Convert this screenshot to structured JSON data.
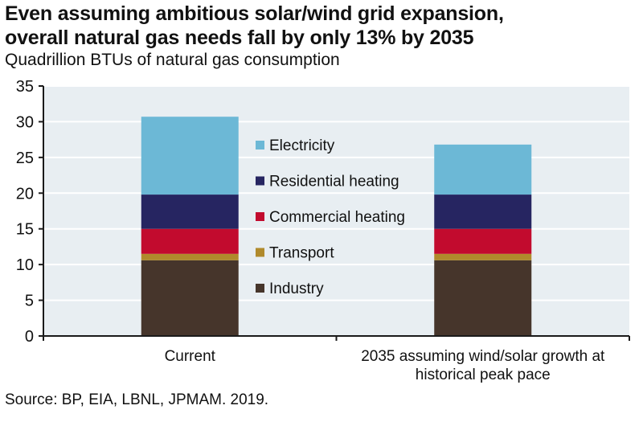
{
  "title_line1": "Even assuming ambitious solar/wind grid expansion,",
  "title_line2": "overall natural gas needs fall by only 13% by 2035",
  "subtitle": "Quadrillion BTUs of natural gas consumption",
  "source": "Source: BP, EIA, LBNL, JPMAM. 2019.",
  "colors": {
    "plot_background": "#e8eef2",
    "gridline": "#ffffff",
    "axis": "#1a1a1a"
  },
  "chart_data": {
    "type": "bar",
    "stacked": true,
    "title": "Even assuming ambitious solar/wind grid expansion, overall natural gas needs fall by only 13% by 2035",
    "subtitle": "Quadrillion BTUs of natural gas consumption",
    "xlabel": "",
    "ylabel": "",
    "ylim": [
      0,
      35
    ],
    "yticks": [
      0,
      5,
      10,
      15,
      20,
      25,
      30,
      35
    ],
    "grid": true,
    "legend_position": "center",
    "categories": [
      [
        "Current"
      ],
      [
        "2035 assuming wind/solar growth at",
        "historical peak pace"
      ]
    ],
    "series": [
      {
        "name": "Industry",
        "color": "#46352b",
        "values": [
          10.6,
          10.6
        ]
      },
      {
        "name": "Transport",
        "color": "#b08a2c",
        "values": [
          0.9,
          0.9
        ]
      },
      {
        "name": "Commercial heating",
        "color": "#c20b2e",
        "values": [
          3.5,
          3.5
        ]
      },
      {
        "name": "Residential heating",
        "color": "#262561",
        "values": [
          4.8,
          4.8
        ]
      },
      {
        "name": "Electricity",
        "color": "#6cb8d6",
        "values": [
          10.9,
          7.0
        ]
      }
    ],
    "legend_order": [
      "Electricity",
      "Residential heating",
      "Commercial heating",
      "Transport",
      "Industry"
    ],
    "totals": [
      30.7,
      26.8
    ]
  }
}
